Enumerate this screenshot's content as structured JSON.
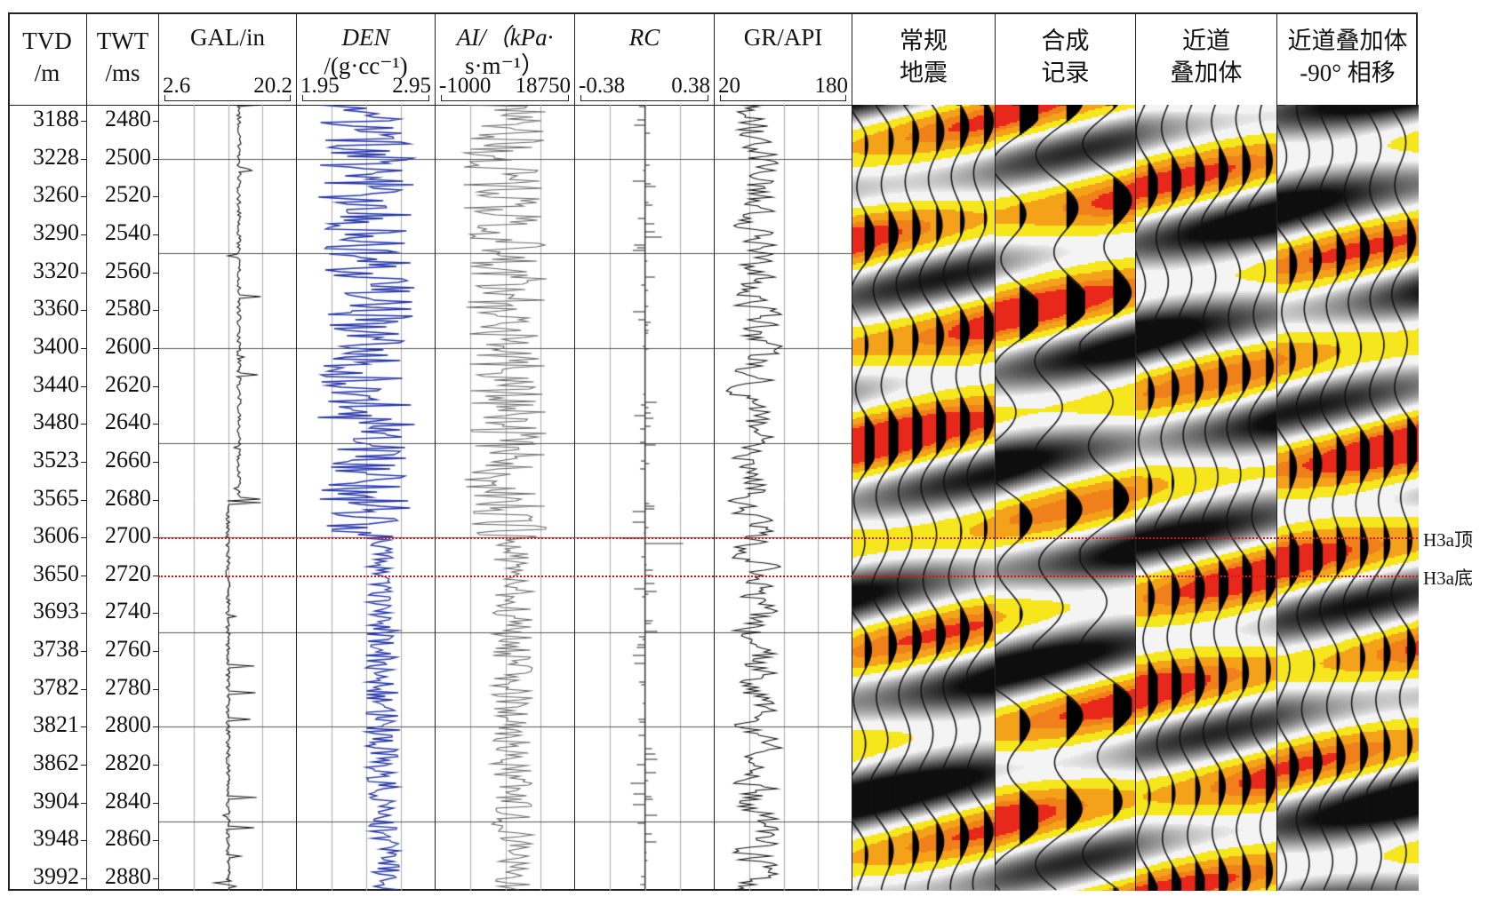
{
  "columns": [
    {
      "id": "tvd",
      "title": [
        "TVD",
        "/m"
      ]
    },
    {
      "id": "twt",
      "title": [
        "TWT",
        "/ms"
      ]
    },
    {
      "id": "gal",
      "title": [
        "GAL/in"
      ],
      "min": "2.6",
      "max": "20.2",
      "color": "#111111"
    },
    {
      "id": "den",
      "title": [
        "DEN",
        "/(g·cc⁻¹)"
      ],
      "min": "1.95",
      "max": "2.95",
      "color": "#2233aa"
    },
    {
      "id": "ai",
      "title": [
        "AI/（kPa·",
        "s·m⁻¹）"
      ],
      "min": "-1000",
      "max": "18750",
      "color": "#666666"
    },
    {
      "id": "rc",
      "title": [
        "RC"
      ],
      "min": "-0.38",
      "max": "0.38",
      "color": "#333333"
    },
    {
      "id": "gr",
      "title": [
        "GR/API"
      ],
      "min": "20",
      "max": "180",
      "color": "#111111"
    },
    {
      "id": "seis",
      "title": [
        "常规",
        "地震"
      ]
    },
    {
      "id": "synth",
      "title": [
        "合成",
        "记录"
      ]
    },
    {
      "id": "near",
      "title": [
        "近道",
        "叠加体"
      ]
    },
    {
      "id": "near90",
      "title": [
        "近道叠加体",
        "-90° 相移"
      ]
    }
  ],
  "tvd_ticks": [
    "3188",
    "3228",
    "3260",
    "3290",
    "3320",
    "3360",
    "3400",
    "3440",
    "3480",
    "3523",
    "3565",
    "3606",
    "3650",
    "3693",
    "3738",
    "3782",
    "3821",
    "3862",
    "3904",
    "3948",
    "3992"
  ],
  "twt_ticks": [
    "2480",
    "2500",
    "2520",
    "2540",
    "2560",
    "2580",
    "2600",
    "2620",
    "2640",
    "2660",
    "2680",
    "2700",
    "2720",
    "2740",
    "2760",
    "2780",
    "2800",
    "2820",
    "2840",
    "2860",
    "2880"
  ],
  "horizons": [
    {
      "label": "H3a顶",
      "twt": 2700
    },
    {
      "label": "H3a底",
      "twt": 2720
    }
  ],
  "colors": {
    "horizon": "#dd1111",
    "seismic_pos": "#f5e61e",
    "seismic_peak": "#f08a10",
    "seismic_neg": "#111111"
  }
}
